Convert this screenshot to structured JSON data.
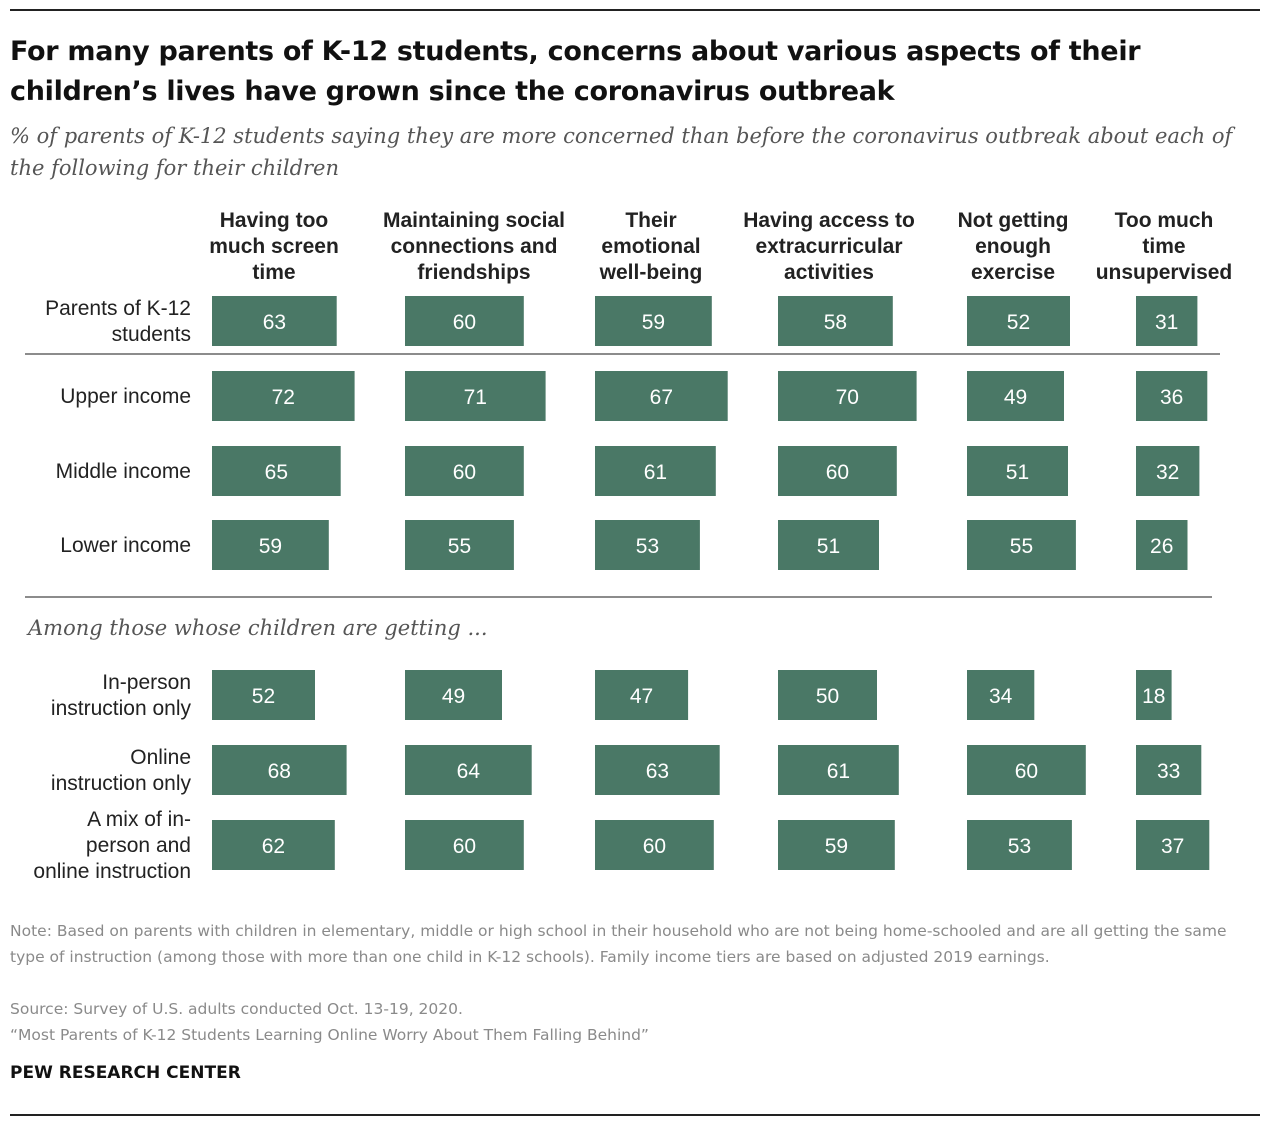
{
  "title": "For many parents of K-12 students, concerns about various aspects of their children’s lives have grown since the coronavirus outbreak",
  "subtitle": "% of parents of K-12 students saying they are more concerned than before the coronavirus outbreak about each of the following for their children",
  "section_label": "Among those whose children are getting ...",
  "note": "Note: Based on parents with children in elementary, middle or high school in their household who are not being home-schooled and are all getting the same type of instruction (among those with more than one child in K-12 schools). Family income tiers are based on adjusted 2019 earnings.",
  "source": "Source: Survey of U.S. adults conducted Oct. 13-19, 2020.",
  "report": "“Most Parents of K-12 Students Learning Online Worry About Them Falling Behind”",
  "brand": "PEW RESEARCH CENTER",
  "colors": {
    "bar": "#4a7866",
    "bar_text": "#ffffff",
    "divider": "#8c8c8c"
  },
  "chart_data": {
    "type": "bar",
    "columns": [
      [
        "Having too",
        "much screen",
        "time"
      ],
      [
        "Maintaining social",
        "connections and",
        "friendships"
      ],
      [
        "Their",
        "emotional",
        "well-being"
      ],
      [
        "Having access to",
        "extracurricular",
        "activities"
      ],
      [
        "Not getting",
        "enough",
        "exercise"
      ],
      [
        "Too much",
        "time",
        "unsupervised"
      ]
    ],
    "rows": [
      {
        "label": [
          "Parents of K-12",
          "students"
        ],
        "values": [
          63,
          60,
          59,
          58,
          52,
          31
        ]
      },
      {
        "label": [
          "Upper income"
        ],
        "values": [
          72,
          71,
          67,
          70,
          49,
          36
        ]
      },
      {
        "label": [
          "Middle income"
        ],
        "values": [
          65,
          60,
          61,
          60,
          51,
          32
        ]
      },
      {
        "label": [
          "Lower income"
        ],
        "values": [
          59,
          55,
          53,
          51,
          55,
          26
        ]
      },
      {
        "label": [
          "In-person",
          "instruction only"
        ],
        "values": [
          52,
          49,
          47,
          50,
          34,
          18
        ]
      },
      {
        "label": [
          "Online",
          "instruction only"
        ],
        "values": [
          68,
          64,
          63,
          61,
          60,
          33
        ]
      },
      {
        "label": [
          "A mix of in-",
          "person and",
          "online instruction"
        ],
        "values": [
          62,
          60,
          60,
          59,
          53,
          37
        ]
      }
    ]
  }
}
